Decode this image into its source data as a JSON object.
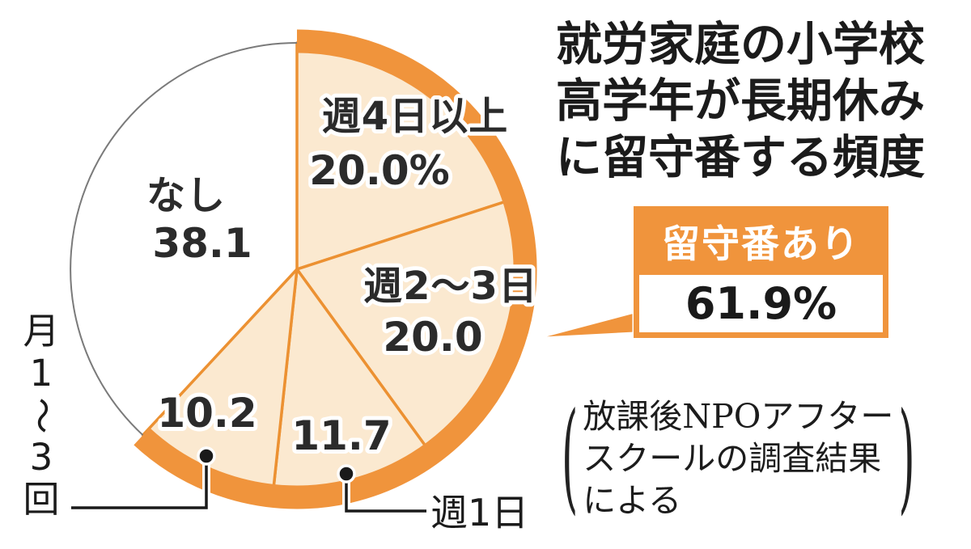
{
  "chart_data": {
    "type": "pie",
    "title": "就労家庭の小学校高学年が長期休みに留守番する頻度",
    "unit": "%",
    "start_angle_deg": 0,
    "direction": "clockwise",
    "slices": [
      {
        "label": "週4日以上",
        "value": 20.0,
        "display": "20.0%"
      },
      {
        "label": "週2〜3日",
        "value": 20.0,
        "display": "20.0"
      },
      {
        "label": "週1日",
        "value": 11.7,
        "display": "11.7"
      },
      {
        "label": "月1〜3回",
        "value": 10.2,
        "display": "10.2"
      },
      {
        "label": "なし",
        "value": 38.1,
        "display": "38.1"
      }
    ],
    "highlight_group": {
      "label": "留守番あり",
      "value": 61.9,
      "display": "61.9%",
      "includes": [
        "週4日以上",
        "週2〜3日",
        "週1日",
        "月1〜3回"
      ]
    },
    "source": "放課後NPOアフタースクールの調査結果による",
    "legend_position": "none",
    "colors": {
      "highlight_slice_fill": "#FBE9D0",
      "highlight_ring": "#F0943C",
      "none_slice_fill": "#FFFFFF",
      "none_slice_outline": "#7A7A7A",
      "label_text": "#2B2B2B"
    }
  },
  "title_block": {
    "line1": "就労家庭の小学校",
    "line2": "高学年が長期休み",
    "line3": "に留守番する頻度"
  },
  "callout": {
    "header": "留守番あり",
    "value": "61.9%"
  },
  "source_block": {
    "paren_open": "(",
    "line1": "放課後NPOアフター",
    "line2": "スクールの調査結果",
    "line3": "による",
    "paren_close": ")"
  }
}
